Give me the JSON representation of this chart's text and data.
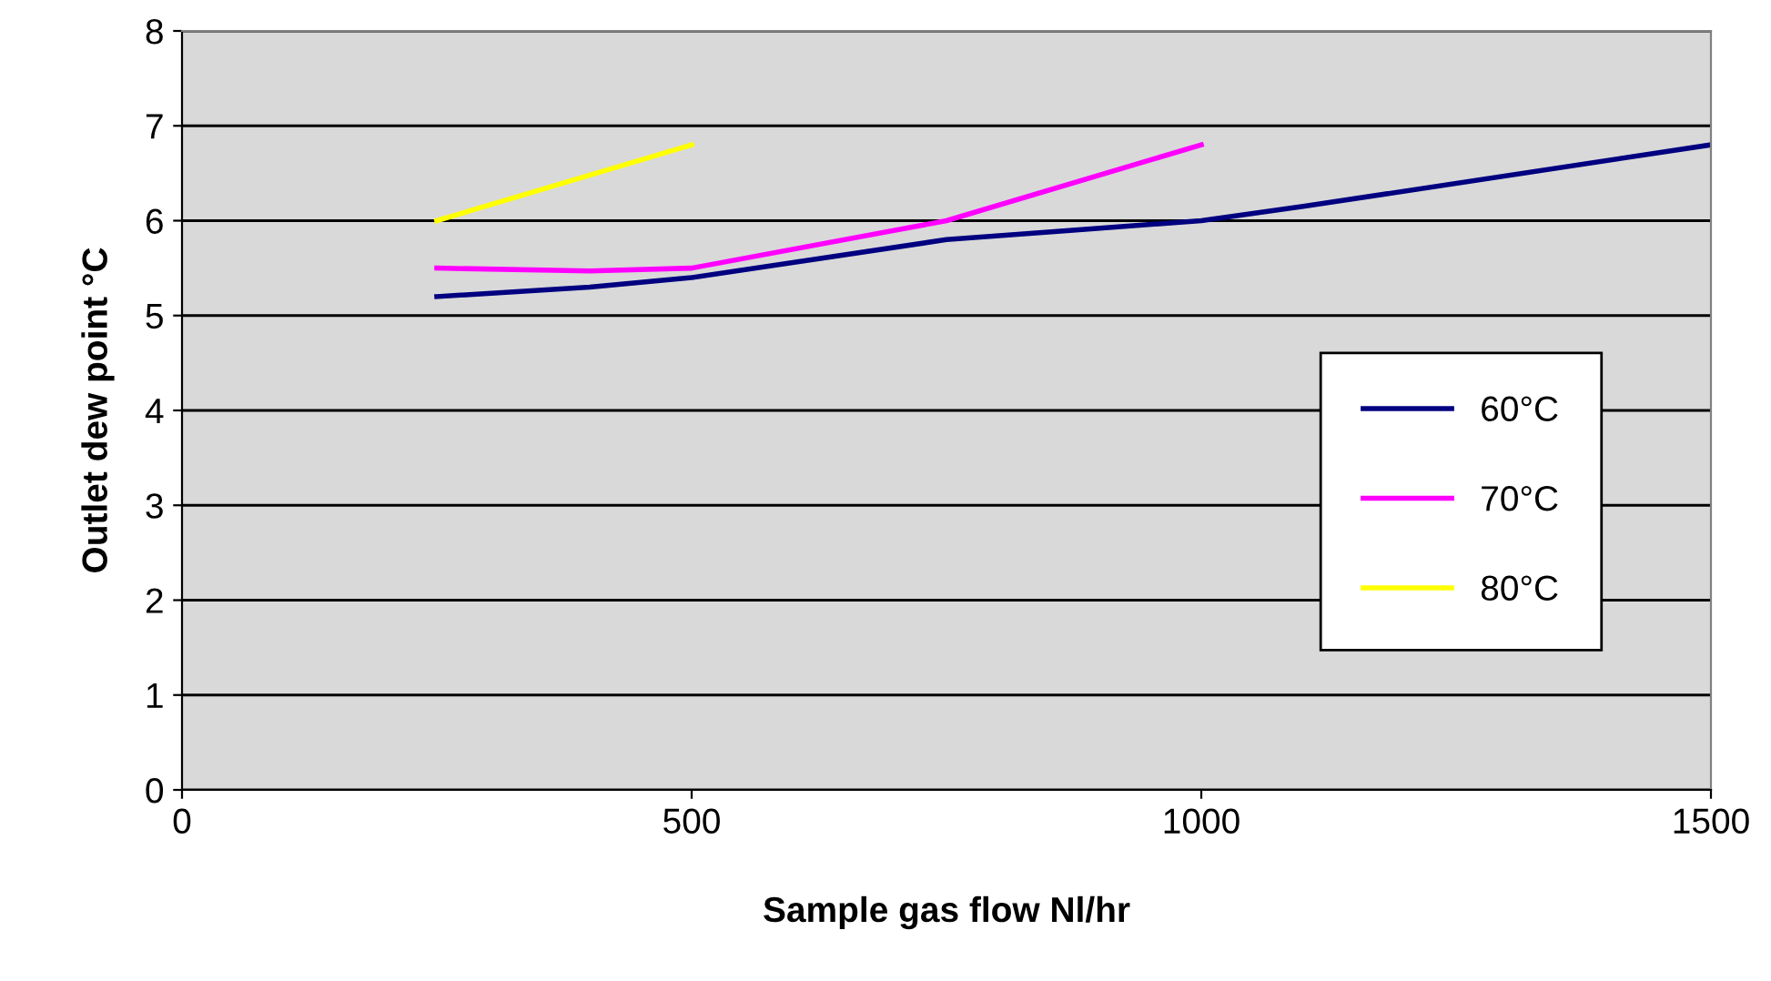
{
  "chart_data": {
    "type": "line",
    "xlabel": "Sample gas flow Nl/hr",
    "ylabel": "Outlet dew point °C",
    "xlim": [
      0,
      1500
    ],
    "xticks": [
      0,
      500,
      1000,
      1500
    ],
    "ylim": [
      0,
      8
    ],
    "yticks": [
      0,
      1,
      2,
      3,
      4,
      5,
      6,
      7,
      8
    ],
    "grid": "y",
    "legend": "right",
    "marker": "none",
    "line_style": "solid",
    "series": [
      {
        "name": "60°C",
        "color": "#000080",
        "x": [
          250,
          400,
          500,
          750,
          1000,
          1100,
          1500
        ],
        "values": [
          5.2,
          5.3,
          5.4,
          5.8,
          6.0,
          6.15,
          6.8
        ]
      },
      {
        "name": "70°C",
        "color": "#ff00ff",
        "x": [
          250,
          400,
          500,
          750,
          1000
        ],
        "values": [
          5.5,
          5.47,
          5.5,
          6.0,
          6.8
        ]
      },
      {
        "name": "80°C",
        "color": "#ffff00",
        "x": [
          250,
          500
        ],
        "values": [
          6.0,
          6.8
        ]
      }
    ]
  }
}
